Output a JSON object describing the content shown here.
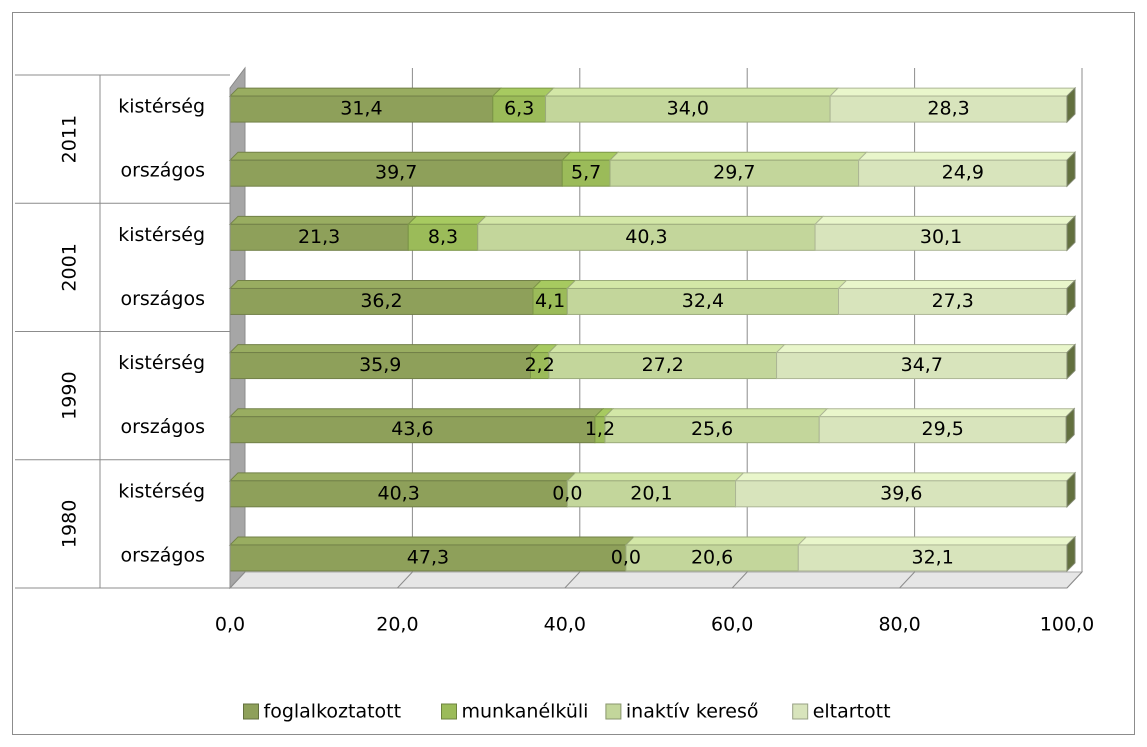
{
  "chart_data": {
    "type": "bar",
    "orientation": "horizontal",
    "stacked": true,
    "groups": [
      "2011",
      "2001",
      "1990",
      "1980"
    ],
    "categories": [
      "kistérség",
      "országos",
      "kistérség",
      "országos",
      "kistérség",
      "országos",
      "kistérség",
      "országos"
    ],
    "series": [
      {
        "name": "foglalkoztatott",
        "color": "#8ea05a",
        "values": [
          31.4,
          39.7,
          21.3,
          36.2,
          35.9,
          43.6,
          40.3,
          47.3
        ],
        "value_labels": [
          "31,4",
          "39,7",
          "21,3",
          "36,2",
          "35,9",
          "43,6",
          "40,3",
          "47,3"
        ]
      },
      {
        "name": "munkanélküli",
        "color": "#9bbb59",
        "values": [
          6.3,
          5.7,
          8.3,
          4.1,
          2.2,
          1.2,
          0.0,
          0.0
        ],
        "value_labels": [
          "6,3",
          "5,7",
          "8,3",
          "4,1",
          "2,2",
          "1,2",
          "0,0",
          "0,0"
        ]
      },
      {
        "name": "inaktív kereső",
        "color": "#c3d69b",
        "values": [
          34.0,
          29.7,
          40.3,
          32.4,
          27.2,
          25.6,
          20.1,
          20.6
        ],
        "value_labels": [
          "34,0",
          "29,7",
          "40,3",
          "32,4",
          "27,2",
          "25,6",
          "20,1",
          "20,6"
        ]
      },
      {
        "name": "eltartott",
        "color": "#d8e4bc",
        "values": [
          28.3,
          24.9,
          30.1,
          27.3,
          34.7,
          29.5,
          39.6,
          32.1
        ],
        "value_labels": [
          "28,3",
          "24,9",
          "30,1",
          "27,3",
          "34,7",
          "29,5",
          "39,6",
          "32,1"
        ]
      }
    ],
    "xlim": [
      0,
      100
    ],
    "xticks": [
      {
        "value": 0,
        "label": "0,0"
      },
      {
        "value": 20,
        "label": "20,0"
      },
      {
        "value": 40,
        "label": "40,0"
      },
      {
        "value": 60,
        "label": "60,0"
      },
      {
        "value": 80,
        "label": "80,0"
      },
      {
        "value": 100,
        "label": "100,0"
      }
    ],
    "grid": true,
    "legend": "bottom"
  }
}
